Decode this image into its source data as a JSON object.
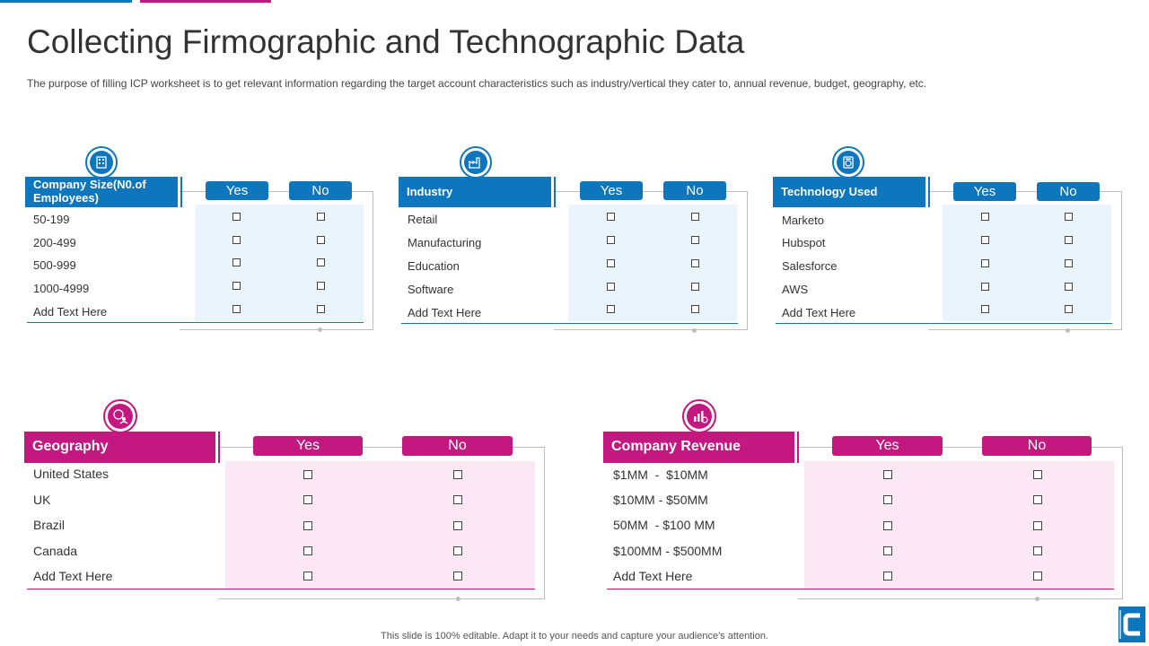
{
  "title": "Collecting Firmographic and Technographic Data",
  "subtitle": "The purpose of filling ICP worksheet is to get relevant information regarding the target account characteristics such as industry/vertical they cater to, annual revenue, budget, geography, etc.",
  "colors": {
    "blue": "#0e76bc",
    "pink": "#c2187f",
    "blue_shade": "#e9f4fc",
    "pink_shade": "#fce8f4"
  },
  "panels": {
    "company_size": {
      "icon": "building-icon",
      "header": "Company Size(N0.of Employees)",
      "yes": "Yes",
      "no": "No",
      "rows": [
        "50-199",
        "200-499",
        "500-999",
        "1000-4999",
        "Add Text Here"
      ]
    },
    "industry": {
      "icon": "factory-icon",
      "header": "Industry",
      "yes": "Yes",
      "no": "No",
      "rows": [
        "Retail",
        "Manufacturing",
        "Education",
        "Software",
        "Add Text Here"
      ]
    },
    "technology": {
      "icon": "server-icon",
      "header": "Technology Used",
      "yes": "Yes",
      "no": "No",
      "rows": [
        "Marketo",
        "Hubspot",
        "Salesforce",
        "AWS",
        "Add Text Here"
      ]
    },
    "geography": {
      "icon": "globe-people-icon",
      "header": "Geography",
      "yes": "Yes",
      "no": "No",
      "rows": [
        "United States",
        "UK",
        "Brazil",
        "Canada",
        "Add Text Here"
      ]
    },
    "revenue": {
      "icon": "revenue-chart-icon",
      "header": "Company Revenue",
      "yes": "Yes",
      "no": "No",
      "rows": [
        "$1MM  -  $10MM",
        "$10MM - $50MM",
        "50MM  - $100 MM",
        "$100MM - $500MM",
        "Add Text Here"
      ]
    }
  },
  "footer": "This slide is 100% editable.  Adapt it to your needs and capture your audience's attention."
}
